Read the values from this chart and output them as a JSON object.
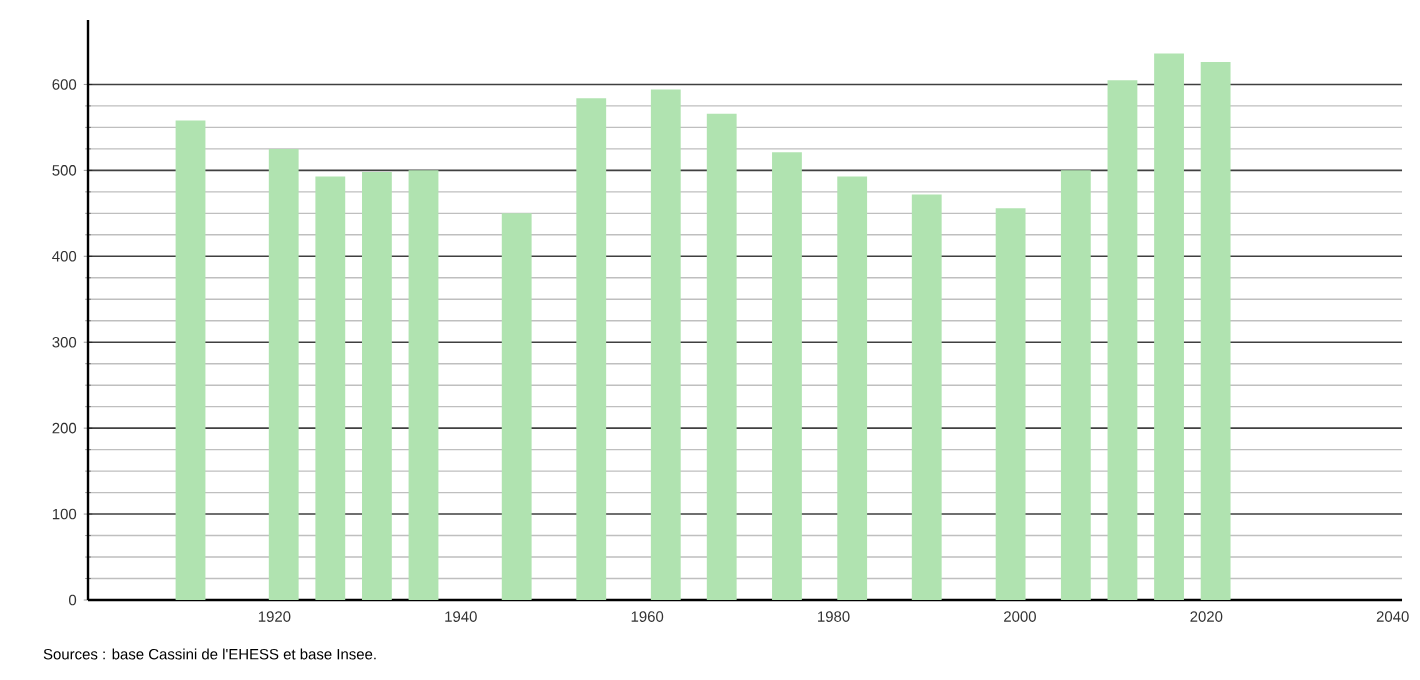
{
  "chart_data": {
    "type": "bar",
    "x": [
      1911,
      1921,
      1926,
      1931,
      1936,
      1946,
      1954,
      1962,
      1968,
      1975,
      1982,
      1990,
      1999,
      2006,
      2011,
      2016,
      2021
    ],
    "values": [
      558,
      525,
      493,
      498,
      500,
      450,
      584,
      594,
      566,
      521,
      493,
      472,
      456,
      500,
      605,
      636,
      626
    ],
    "color": "#b0e3b0",
    "xlim": [
      1900,
      2041
    ],
    "xticks": [
      1920,
      1940,
      1960,
      1980,
      2000,
      2020,
      2040
    ],
    "ylim": [
      0,
      675
    ],
    "yticks": [
      0,
      100,
      200,
      300,
      400,
      500,
      600
    ],
    "grid": "y",
    "annotations": [
      "Sources : base Cassini de l'EHESS et base Insee."
    ]
  }
}
